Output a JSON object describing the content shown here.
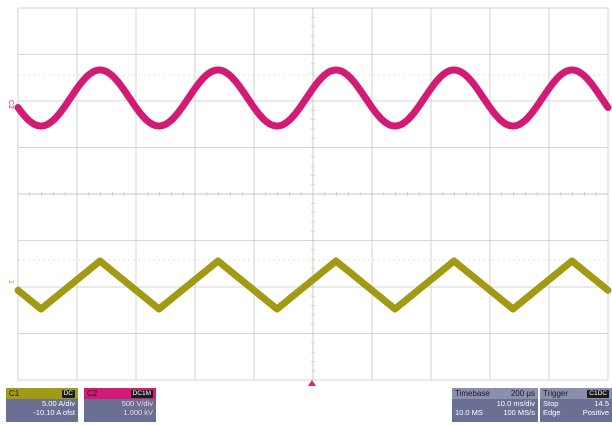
{
  "channels": {
    "c1": {
      "label": "C1",
      "coupling": "DC",
      "scale": "5.00 A/div",
      "offset": "-10.10 A ofst",
      "color": "#a39a14",
      "waveform": "triangle",
      "marker": "1"
    },
    "c2": {
      "label": "C2",
      "coupling": "DC1M",
      "scale": "500 V/div",
      "offset": "1.000 kV",
      "color": "#d31a74",
      "waveform": "sine",
      "marker": "C2"
    }
  },
  "timebase": {
    "label": "Timebase",
    "delay": "200 µs",
    "scale": "10.0 ms/div",
    "samples": "10.0 MS",
    "rate": "100 MS/s"
  },
  "trigger": {
    "label": "Trigger",
    "tag": "C1DC",
    "mode": "Stop",
    "level": "14.5",
    "type": "Edge",
    "slope": "Positive"
  },
  "grid": {
    "divisions_x": 10,
    "divisions_y": 8,
    "cycles_shown": 5,
    "color": "#c8c8c8",
    "trigger_marker_color": "#e0207a"
  }
}
